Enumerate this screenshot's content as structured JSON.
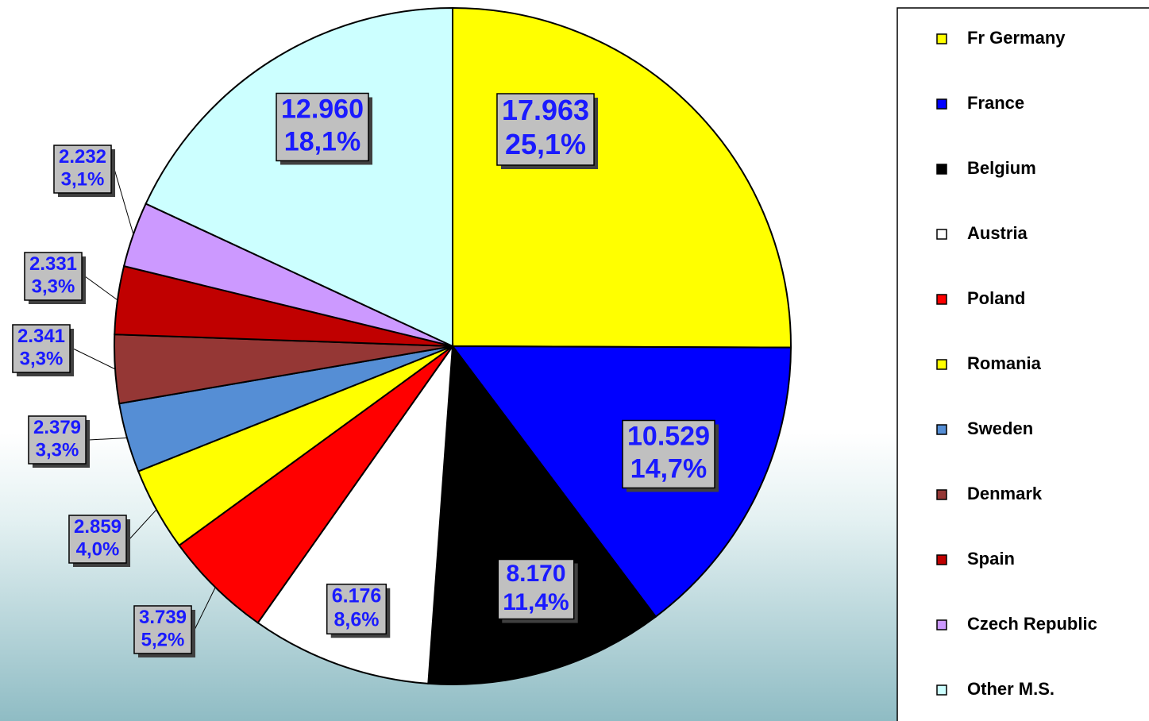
{
  "chart_data": {
    "type": "pie",
    "categories": [
      "Fr Germany",
      "France",
      "Belgium",
      "Austria",
      "Poland",
      "Romania",
      "Sweden",
      "Denmark",
      "Spain",
      "Czech Republic",
      "Other M.S."
    ],
    "values": [
      17963,
      10529,
      8170,
      6176,
      3739,
      2859,
      2379,
      2341,
      2331,
      2232,
      12960
    ],
    "value_labels": [
      "17.963",
      "10.529",
      "8.170",
      "6.176",
      "3.739",
      "2.859",
      "2.379",
      "2.341",
      "2.331",
      "2.232",
      "12.960"
    ],
    "percent_labels": [
      "25,1%",
      "14,7%",
      "11,4%",
      "8,6%",
      "5,2%",
      "4,0%",
      "3,3%",
      "3,3%",
      "3,3%",
      "3,1%",
      "18,1%"
    ],
    "colors": [
      "#ffff00",
      "#0000ff",
      "#000000",
      "#ffffff",
      "#ff0000",
      "#ffff00",
      "#558ed5",
      "#953735",
      "#c00000",
      "#cc99ff",
      "#ccffff"
    ],
    "legend": "right"
  }
}
